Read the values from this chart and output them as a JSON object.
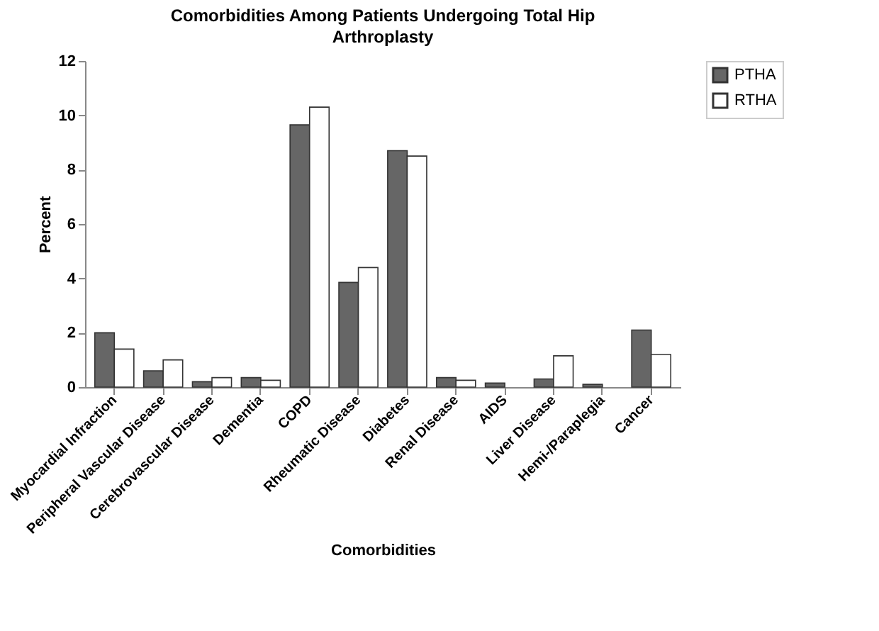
{
  "chart_data": {
    "type": "bar",
    "title": "Comorbidities Among Patients Undergoing Total Hip Arthroplasty",
    "xlabel": "Comorbidities",
    "ylabel": "Percent",
    "categories": [
      "Myocardial Infraction",
      "Peripheral Vascular Disease",
      "Cerebrovascular Disease",
      "Dementia",
      "COPD",
      "Rheumatic Disease",
      "Diabetes",
      "Renal Disease",
      "AIDS",
      "Liver Disease",
      "Hemi-/Paraplegia",
      "Cancer"
    ],
    "series": [
      {
        "name": "PTHA",
        "color": "#666666",
        "values": [
          2.0,
          0.6,
          0.2,
          0.35,
          9.65,
          3.85,
          8.7,
          0.35,
          0.15,
          0.3,
          0.1,
          2.1
        ]
      },
      {
        "name": "RTHA",
        "color": "#ffffff",
        "values": [
          1.4,
          1.0,
          0.35,
          0.25,
          10.3,
          4.4,
          8.5,
          0.25,
          null,
          1.15,
          null,
          1.2
        ]
      }
    ],
    "ylim": [
      0,
      12
    ],
    "yticks": [
      0,
      2,
      4,
      6,
      8,
      10,
      12
    ],
    "grid": false,
    "legend": "right"
  }
}
